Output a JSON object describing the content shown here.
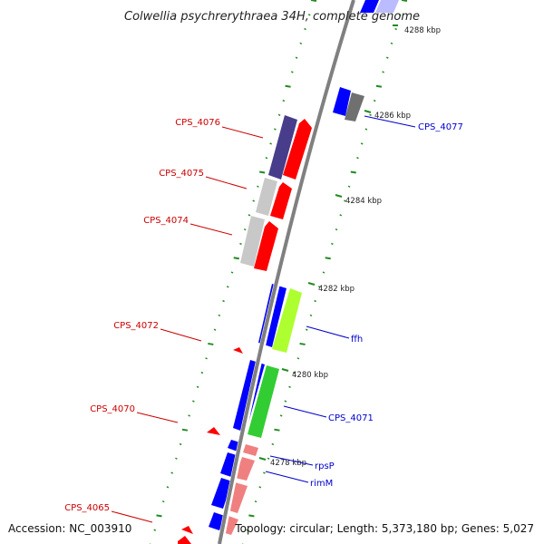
{
  "title": "Colwellia psychrerythraea 34H, complete genome",
  "footer": {
    "accession": "Accession: NC_003910",
    "topology": "Topology: circular; Length: 5,373,180 bp; Genes: 5,027"
  },
  "colors": {
    "backbone": "#808080",
    "tick": "#228B22",
    "forward_label": "#0000CC",
    "reverse_label": "#CC0000",
    "orf_forward": "#0000FF",
    "orf_reverse": "#FF0000",
    "gray_feature": "#C8C8C8",
    "dark_gray_feature": "#707070",
    "purple_feature": "#483D8B",
    "lime_feature": "#ADFF2F",
    "green_feature": "#32CD32",
    "pink_feature": "#F08080",
    "light_blue_feature": "#BBBBFF"
  },
  "scale_labels": [
    "4288 kbp",
    "4286 kbp",
    "4284 kbp",
    "4282 kbp",
    "4280 kbp",
    "4278 kbp"
  ],
  "gene_labels": {
    "forward": [
      "CPS_4077",
      "ffh",
      "CPS_4071",
      "rpsP",
      "rimM"
    ],
    "reverse": [
      "CPS_4076",
      "CPS_4075",
      "CPS_4074",
      "CPS_4072",
      "CPS_4070",
      "CPS_4065"
    ]
  }
}
